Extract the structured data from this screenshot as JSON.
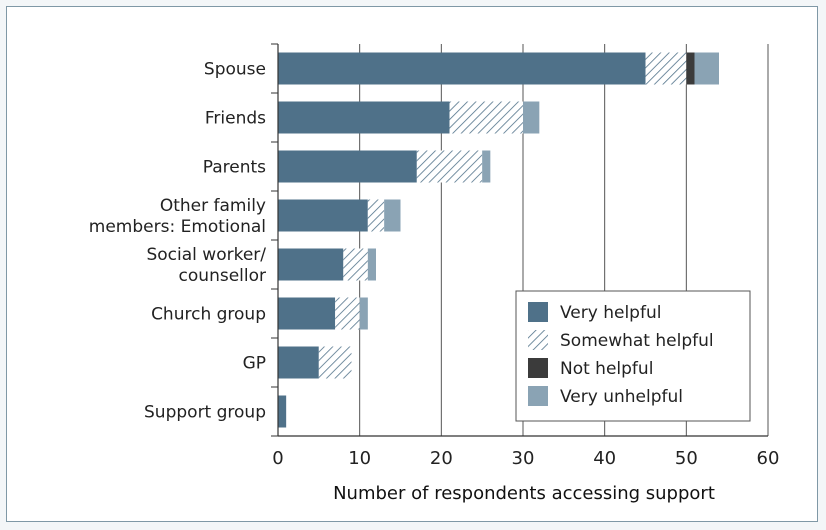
{
  "chart_data": {
    "type": "bar",
    "orientation": "horizontal",
    "stacked": true,
    "categories": [
      "Spouse",
      "Friends",
      "Parents",
      "Other family\nmembers: Emotional",
      "Social worker/\ncounsellor",
      "Church group",
      "GP",
      "Support group"
    ],
    "series": [
      {
        "name": "Very helpful",
        "values": [
          45,
          21,
          17,
          11,
          8,
          7,
          5,
          1
        ],
        "color": "#4f7189",
        "pattern": "solid"
      },
      {
        "name": "Somewhat helpful",
        "values": [
          5,
          9,
          8,
          2,
          3,
          3,
          4,
          0
        ],
        "color": "#4f7189",
        "pattern": "hatch"
      },
      {
        "name": "Not helpful",
        "values": [
          1,
          0,
          0,
          0,
          0,
          0,
          0,
          0
        ],
        "color": "#3b3b3b",
        "pattern": "solid"
      },
      {
        "name": "Very unhelpful",
        "values": [
          3,
          2,
          1,
          2,
          1,
          1,
          0,
          0
        ],
        "color": "#8aa3b4",
        "pattern": "solid"
      }
    ],
    "xlabel": "Number of respondents accessing support",
    "ylabel": "",
    "xlim": [
      0,
      60
    ],
    "xticks": [
      0,
      10,
      20,
      30,
      40,
      50,
      60
    ],
    "grid": "vertical",
    "legend": "bottom-right"
  }
}
